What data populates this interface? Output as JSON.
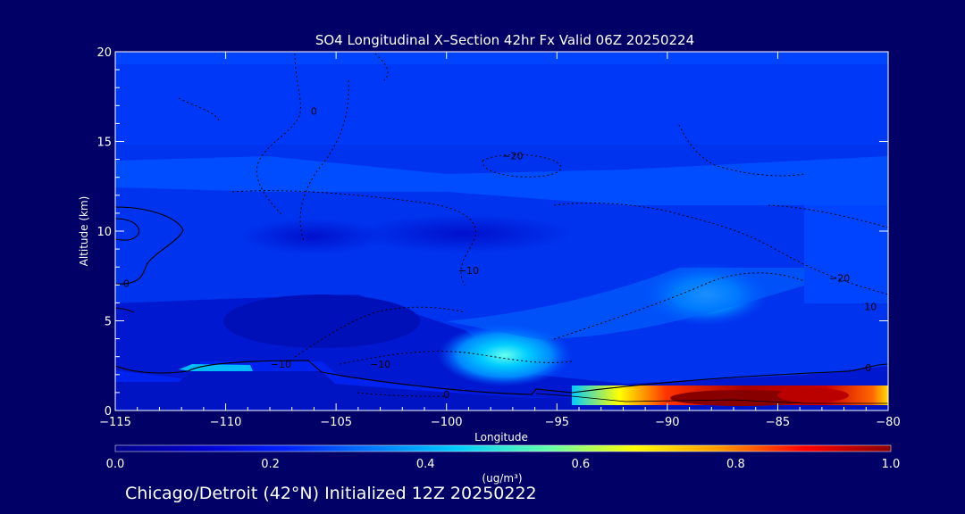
{
  "chart_data": {
    "type": "heatmap",
    "title": "SO4 Longitudinal X–Section 42hr  Fx Valid 06Z 20250224",
    "xlabel": "Longitude",
    "ylabel": "Altitude (km)",
    "xlim": [
      -115,
      -80
    ],
    "ylim": [
      0,
      20
    ],
    "x_ticks": [
      -115,
      -110,
      -105,
      -100,
      -95,
      -90,
      -85,
      -80
    ],
    "x_tick_labels": [
      "−115",
      "−110",
      "−105",
      "−100",
      "−95",
      "−90",
      "−85",
      "−80"
    ],
    "y_ticks": [
      0,
      5,
      10,
      15,
      20
    ],
    "y_tick_labels": [
      "0",
      "5",
      "10",
      "15",
      "20"
    ],
    "colorbar": {
      "range": [
        0.0,
        1.0
      ],
      "ticks": [
        0.0,
        0.2,
        0.4,
        0.6,
        0.8,
        1.0
      ],
      "tick_labels": [
        "0.0",
        "0.2",
        "0.4",
        "0.6",
        "0.8",
        "1.0"
      ],
      "units_label": "(ug/m³)",
      "colors": [
        "#000088",
        "#0000cc",
        "#0022ff",
        "#0077ff",
        "#00ccff",
        "#66ffaa",
        "#ffff00",
        "#ff9900",
        "#ff0000",
        "#880000"
      ]
    },
    "contour_labels": [
      {
        "text": "0",
        "lon": -114.5,
        "alt": 6.9
      },
      {
        "text": "0",
        "lon": -106,
        "alt": 16.5
      },
      {
        "text": "−20",
        "lon": -97,
        "alt": 14.0
      },
      {
        "text": "−10",
        "lon": -99,
        "alt": 7.6
      },
      {
        "text": "−20",
        "lon": -82.2,
        "alt": 7.2
      },
      {
        "text": "10",
        "lon": -80.8,
        "alt": 5.6
      },
      {
        "text": "−10",
        "lon": -107.5,
        "alt": 2.4
      },
      {
        "text": "−10",
        "lon": -103,
        "alt": 2.4
      },
      {
        "text": "0",
        "lon": -100,
        "alt": 0.7
      },
      {
        "text": "0",
        "lon": -80.9,
        "alt": 2.2
      }
    ],
    "footer": "Chicago/Detroit (42°N) Initialized 12Z 20250222"
  }
}
